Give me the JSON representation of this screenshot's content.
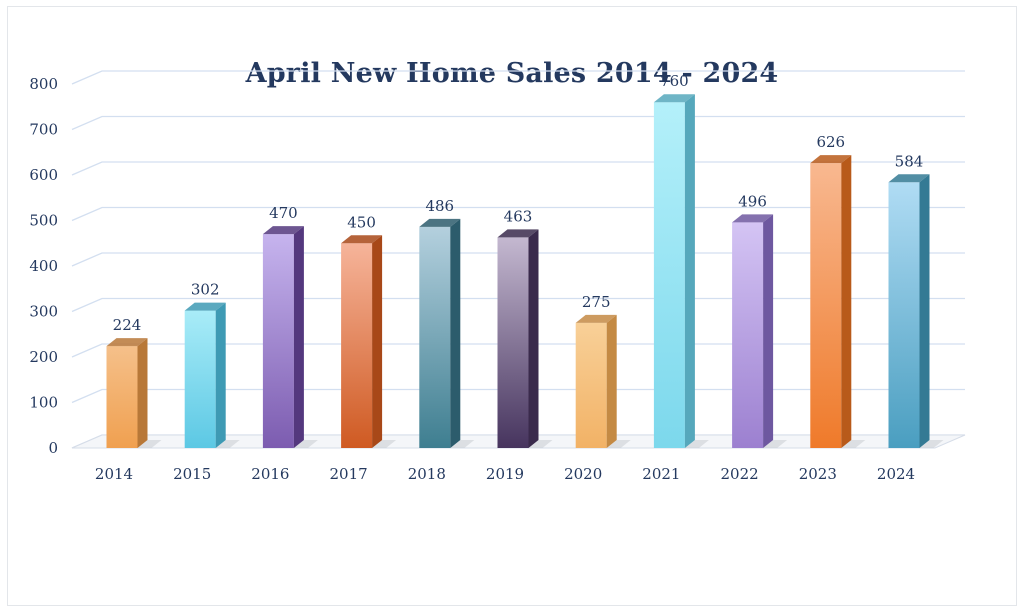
{
  "chart_data": {
    "type": "bar",
    "title": "April New Home Sales 2014 - 2024",
    "xlabel": "",
    "ylabel": "",
    "categories": [
      "2014",
      "2015",
      "2016",
      "2017",
      "2018",
      "2019",
      "2020",
      "2021",
      "2022",
      "2023",
      "2024"
    ],
    "values": [
      224,
      302,
      470,
      450,
      486,
      463,
      275,
      760,
      496,
      626,
      584
    ],
    "data_labels": [
      "224",
      "302",
      "470",
      "450",
      "486",
      "463",
      "275",
      "760",
      "496",
      "626",
      "584"
    ],
    "ylim": [
      0,
      800
    ],
    "yticks": [
      "0",
      "100",
      "200",
      "300",
      "400",
      "500",
      "600",
      "700",
      "800"
    ],
    "grid": true,
    "legend": "none",
    "bar_colors": [
      {
        "top": "#f5c08a",
        "bottom": "#f0a050",
        "side": "#b87838"
      },
      {
        "top": "#a9ecf8",
        "bottom": "#5cc8e4",
        "side": "#3e9ab4"
      },
      {
        "top": "#c6b4ee",
        "bottom": "#7c5cb0",
        "side": "#54387e"
      },
      {
        "top": "#f6b49a",
        "bottom": "#cf5a22",
        "side": "#a84818"
      },
      {
        "top": "#b4d0de",
        "bottom": "#3e7e90",
        "side": "#2c5c6c"
      },
      {
        "top": "#c4b8d0",
        "bottom": "#46345e",
        "side": "#3a2a4c"
      },
      {
        "top": "#f8d098",
        "bottom": "#f2b266",
        "side": "#c48a44"
      },
      {
        "top": "#b4f0fa",
        "bottom": "#7cd8ec",
        "side": "#56a8bc"
      },
      {
        "top": "#d4c4f4",
        "bottom": "#9c80d0",
        "side": "#6e58a0"
      },
      {
        "top": "#f8b890",
        "bottom": "#ef7a2a",
        "side": "#b85a1a"
      },
      {
        "top": "#b0dcf4",
        "bottom": "#4a9ec0",
        "side": "#347a94"
      }
    ]
  }
}
